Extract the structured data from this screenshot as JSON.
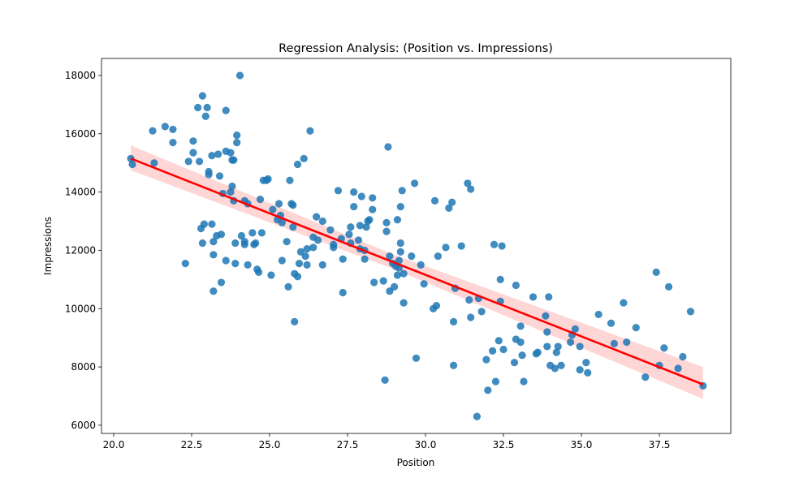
{
  "chart_data": {
    "type": "scatter",
    "title": "Regression Analysis: (Position vs. Impressions)",
    "xlabel": "Position",
    "ylabel": "Impressions",
    "xlim": [
      19.61,
      39.79
    ],
    "ylim": [
      5718,
      18585
    ],
    "xticks": [
      "20.0",
      "22.5",
      "25.0",
      "27.5",
      "30.0",
      "32.5",
      "35.0",
      "37.5"
    ],
    "xtick_values": [
      20,
      22.5,
      25,
      27.5,
      30,
      32.5,
      35,
      37.5
    ],
    "yticks": [
      "6000",
      "8000",
      "10000",
      "12000",
      "14000",
      "16000",
      "18000"
    ],
    "ytick_values": [
      6000,
      8000,
      10000,
      12000,
      14000,
      16000,
      18000
    ],
    "grid": false,
    "colors": {
      "points": "#1f77b4",
      "line": "#ff0000",
      "band": "#ffcccc"
    },
    "regression": {
      "x": [
        20.55,
        38.9
      ],
      "y": [
        15150,
        7400
      ],
      "ci": {
        "x": [
          20.55,
          29.0,
          38.9
        ],
        "lower": [
          14750,
          11350,
          6900
        ],
        "upper": [
          15600,
          11850,
          8000
        ]
      }
    },
    "points": [
      [
        20.55,
        15150
      ],
      [
        20.6,
        14950
      ],
      [
        21.25,
        16100
      ],
      [
        21.3,
        15000
      ],
      [
        21.65,
        16250
      ],
      [
        21.9,
        16150
      ],
      [
        21.9,
        15700
      ],
      [
        22.3,
        11550
      ],
      [
        22.4,
        15050
      ],
      [
        22.55,
        15750
      ],
      [
        22.55,
        15350
      ],
      [
        22.7,
        16900
      ],
      [
        22.75,
        15050
      ],
      [
        22.8,
        12750
      ],
      [
        22.85,
        17300
      ],
      [
        22.85,
        12250
      ],
      [
        22.9,
        12900
      ],
      [
        22.95,
        16600
      ],
      [
        23.0,
        16900
      ],
      [
        23.05,
        14700
      ],
      [
        23.05,
        14600
      ],
      [
        23.15,
        12900
      ],
      [
        23.15,
        15250
      ],
      [
        23.2,
        10600
      ],
      [
        23.2,
        12300
      ],
      [
        23.2,
        11850
      ],
      [
        23.3,
        12500
      ],
      [
        23.35,
        15300
      ],
      [
        23.4,
        14550
      ],
      [
        23.45,
        12550
      ],
      [
        23.45,
        10900
      ],
      [
        23.5,
        13950
      ],
      [
        23.6,
        16800
      ],
      [
        23.6,
        15400
      ],
      [
        23.6,
        11650
      ],
      [
        23.75,
        15350
      ],
      [
        23.75,
        14000
      ],
      [
        23.8,
        14200
      ],
      [
        23.8,
        15100
      ],
      [
        23.85,
        15100
      ],
      [
        23.85,
        13700
      ],
      [
        23.9,
        12250
      ],
      [
        23.9,
        11550
      ],
      [
        23.95,
        15950
      ],
      [
        23.95,
        15700
      ],
      [
        24.05,
        18000
      ],
      [
        24.1,
        12500
      ],
      [
        24.2,
        12300
      ],
      [
        24.2,
        12200
      ],
      [
        24.2,
        13700
      ],
      [
        24.3,
        11500
      ],
      [
        24.3,
        13600
      ],
      [
        24.45,
        12600
      ],
      [
        24.5,
        12200
      ],
      [
        24.55,
        12250
      ],
      [
        24.6,
        11350
      ],
      [
        24.65,
        11250
      ],
      [
        24.7,
        13750
      ],
      [
        24.75,
        12600
      ],
      [
        24.8,
        14400
      ],
      [
        24.9,
        14400
      ],
      [
        24.95,
        14450
      ],
      [
        25.05,
        11150
      ],
      [
        25.1,
        13400
      ],
      [
        25.25,
        13050
      ],
      [
        25.3,
        13600
      ],
      [
        25.35,
        13200
      ],
      [
        25.4,
        12950
      ],
      [
        25.4,
        11650
      ],
      [
        25.55,
        12300
      ],
      [
        25.6,
        10750
      ],
      [
        25.65,
        14400
      ],
      [
        25.7,
        13600
      ],
      [
        25.75,
        13550
      ],
      [
        25.75,
        12800
      ],
      [
        25.8,
        9550
      ],
      [
        25.8,
        11200
      ],
      [
        25.9,
        11100
      ],
      [
        25.9,
        14950
      ],
      [
        25.95,
        11550
      ],
      [
        26.0,
        11950
      ],
      [
        26.1,
        15150
      ],
      [
        26.15,
        11800
      ],
      [
        26.2,
        12050
      ],
      [
        26.2,
        11500
      ],
      [
        26.3,
        16100
      ],
      [
        26.4,
        12100
      ],
      [
        26.4,
        12450
      ],
      [
        26.5,
        13150
      ],
      [
        26.55,
        12350
      ],
      [
        26.7,
        13000
      ],
      [
        26.7,
        11500
      ],
      [
        26.95,
        12700
      ],
      [
        27.05,
        12200
      ],
      [
        27.05,
        12100
      ],
      [
        27.2,
        14050
      ],
      [
        27.3,
        12400
      ],
      [
        27.35,
        10550
      ],
      [
        27.35,
        11700
      ],
      [
        27.55,
        12550
      ],
      [
        27.6,
        12250
      ],
      [
        27.6,
        12800
      ],
      [
        27.7,
        13500
      ],
      [
        27.7,
        14000
      ],
      [
        27.85,
        12350
      ],
      [
        27.9,
        12850
      ],
      [
        27.9,
        12050
      ],
      [
        27.95,
        13850
      ],
      [
        28.05,
        12000
      ],
      [
        28.05,
        11700
      ],
      [
        28.1,
        12800
      ],
      [
        28.15,
        13000
      ],
      [
        28.2,
        13050
      ],
      [
        28.3,
        13800
      ],
      [
        28.3,
        13400
      ],
      [
        28.35,
        10900
      ],
      [
        28.65,
        10950
      ],
      [
        28.7,
        7550
      ],
      [
        28.75,
        12950
      ],
      [
        28.75,
        12650
      ],
      [
        28.8,
        15550
      ],
      [
        28.85,
        11800
      ],
      [
        28.85,
        10600
      ],
      [
        28.95,
        11550
      ],
      [
        29.0,
        10750
      ],
      [
        29.05,
        11450
      ],
      [
        29.1,
        13050
      ],
      [
        29.1,
        11150
      ],
      [
        29.15,
        11650
      ],
      [
        29.15,
        11400
      ],
      [
        29.2,
        12250
      ],
      [
        29.2,
        13500
      ],
      [
        29.2,
        11950
      ],
      [
        29.25,
        14050
      ],
      [
        29.3,
        10200
      ],
      [
        29.3,
        11200
      ],
      [
        29.55,
        11800
      ],
      [
        29.65,
        14300
      ],
      [
        29.7,
        8300
      ],
      [
        29.85,
        11500
      ],
      [
        29.95,
        10850
      ],
      [
        30.25,
        10000
      ],
      [
        30.3,
        13700
      ],
      [
        30.35,
        10100
      ],
      [
        30.4,
        11800
      ],
      [
        30.65,
        12100
      ],
      [
        30.75,
        13450
      ],
      [
        30.85,
        13650
      ],
      [
        30.9,
        9550
      ],
      [
        30.9,
        8050
      ],
      [
        30.95,
        10700
      ],
      [
        31.15,
        12150
      ],
      [
        31.35,
        14300
      ],
      [
        31.4,
        10300
      ],
      [
        31.45,
        14100
      ],
      [
        31.45,
        9700
      ],
      [
        31.65,
        6300
      ],
      [
        31.7,
        10350
      ],
      [
        31.8,
        9900
      ],
      [
        31.95,
        8250
      ],
      [
        32.0,
        7200
      ],
      [
        32.15,
        8550
      ],
      [
        32.2,
        12200
      ],
      [
        32.25,
        7500
      ],
      [
        32.35,
        8900
      ],
      [
        32.4,
        11000
      ],
      [
        32.4,
        10250
      ],
      [
        32.45,
        12150
      ],
      [
        32.5,
        8600
      ],
      [
        32.85,
        8150
      ],
      [
        32.9,
        10800
      ],
      [
        32.9,
        8950
      ],
      [
        33.05,
        9400
      ],
      [
        33.05,
        8850
      ],
      [
        33.1,
        8400
      ],
      [
        33.15,
        7500
      ],
      [
        33.45,
        10400
      ],
      [
        33.55,
        8450
      ],
      [
        33.6,
        8500
      ],
      [
        33.85,
        9750
      ],
      [
        33.9,
        8700
      ],
      [
        33.9,
        9200
      ],
      [
        33.95,
        10400
      ],
      [
        34.0,
        8050
      ],
      [
        34.15,
        7950
      ],
      [
        34.2,
        8500
      ],
      [
        34.25,
        8700
      ],
      [
        34.35,
        8050
      ],
      [
        34.65,
        8850
      ],
      [
        34.7,
        9100
      ],
      [
        34.8,
        9300
      ],
      [
        34.95,
        7900
      ],
      [
        34.95,
        8700
      ],
      [
        35.15,
        8150
      ],
      [
        35.2,
        7800
      ],
      [
        35.55,
        9800
      ],
      [
        35.95,
        9500
      ],
      [
        36.05,
        8800
      ],
      [
        36.35,
        10200
      ],
      [
        36.45,
        8850
      ],
      [
        36.75,
        9350
      ],
      [
        37.05,
        7650
      ],
      [
        37.4,
        11250
      ],
      [
        37.5,
        8050
      ],
      [
        37.65,
        8650
      ],
      [
        37.8,
        10750
      ],
      [
        38.1,
        7950
      ],
      [
        38.25,
        8350
      ],
      [
        38.5,
        9900
      ],
      [
        38.9,
        7350
      ]
    ]
  }
}
